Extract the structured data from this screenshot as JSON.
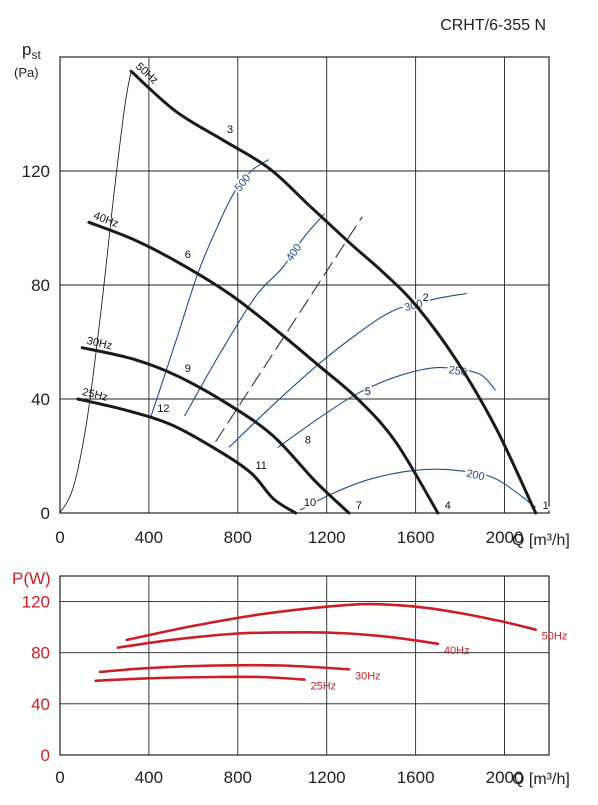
{
  "chart_data": [
    {
      "type": "line",
      "title": "CRHT/6-355 N",
      "ylabel_main": "p",
      "ylabel_sub": "st",
      "ylabel_unit": "(Pa)",
      "xlabel": "Q [m³/h]",
      "xlim": [
        0,
        2200
      ],
      "ylim": [
        0,
        160
      ],
      "xticks": [
        "0",
        "400",
        "800",
        "1200",
        "1600",
        "2000"
      ],
      "xtick_values": [
        0,
        400,
        800,
        1200,
        1600,
        2000
      ],
      "yticks": [
        "0",
        "40",
        "80",
        "120"
      ],
      "ytick_values": [
        0,
        40,
        80,
        120
      ],
      "grid": true,
      "series": [
        {
          "name": "50Hz",
          "x": [
            320,
            520,
            730,
            940,
            1120,
            1300,
            1460,
            1600,
            1780,
            1960,
            2140
          ],
          "y": [
            155,
            141,
            131,
            121,
            108,
            95,
            84,
            73,
            54,
            30,
            0
          ]
        },
        {
          "name": "40Hz",
          "x": [
            130,
            330,
            530,
            760,
            960,
            1160,
            1340,
            1510,
            1700
          ],
          "y": [
            102,
            96,
            88,
            77,
            65,
            52,
            40,
            25,
            0
          ]
        },
        {
          "name": "30Hz",
          "x": [
            100,
            330,
            530,
            760,
            960,
            1150,
            1300
          ],
          "y": [
            58,
            54,
            48,
            38,
            27,
            11,
            0
          ]
        },
        {
          "name": "25Hz",
          "x": [
            80,
            300,
            500,
            710,
            860,
            960,
            1060
          ],
          "y": [
            40,
            36,
            31,
            22,
            14,
            5,
            0
          ]
        }
      ],
      "operating_points": [
        {
          "label": "1",
          "x": 2140,
          "y": 0
        },
        {
          "label": "2",
          "x": 1600,
          "y": 73
        },
        {
          "label": "3",
          "x": 720,
          "y": 132
        },
        {
          "label": "4",
          "x": 1700,
          "y": 0
        },
        {
          "label": "5",
          "x": 1340,
          "y": 40
        },
        {
          "label": "6",
          "x": 530,
          "y": 88
        },
        {
          "label": "7",
          "x": 1300,
          "y": 0
        },
        {
          "label": "8",
          "x": 1070,
          "y": 23
        },
        {
          "label": "9",
          "x": 530,
          "y": 48
        },
        {
          "label": "10",
          "x": 1080,
          "y": 1
        },
        {
          "label": "11",
          "x": 860,
          "y": 14
        },
        {
          "label": "12",
          "x": 420,
          "y": 34
        }
      ],
      "efficiency_curves": [
        {
          "name": "500",
          "x": [
            410,
            520,
            620,
            700,
            780,
            860,
            940
          ],
          "y": [
            34,
            60,
            84,
            99,
            112,
            120,
            124
          ]
        },
        {
          "name": "400",
          "x": [
            560,
            720,
            880,
            1000,
            1100,
            1190
          ],
          "y": [
            34,
            56,
            76,
            86,
            97,
            105
          ]
        },
        {
          "name": "300",
          "x": [
            760,
            960,
            1160,
            1340,
            1500,
            1680,
            1830
          ],
          "y": [
            23,
            38,
            52,
            63,
            71,
            75,
            77
          ]
        },
        {
          "name": "250",
          "x": [
            980,
            1160,
            1340,
            1520,
            1700,
            1880,
            1960
          ],
          "y": [
            23,
            33,
            42,
            48,
            51,
            49,
            43
          ]
        },
        {
          "name": "200",
          "x": [
            1080,
            1230,
            1400,
            1600,
            1780,
            1960,
            2140
          ],
          "y": [
            1,
            7,
            12,
            15,
            15,
            12,
            2
          ]
        }
      ],
      "system_curve": {
        "x": [
          0,
          60,
          120,
          180,
          240,
          290,
          320
        ],
        "y": [
          0,
          9,
          32,
          68,
          110,
          142,
          155
        ]
      },
      "dashed_line": {
        "x": [
          700,
          1360
        ],
        "y": [
          25,
          104
        ]
      }
    },
    {
      "type": "line",
      "ylabel": "P(W)",
      "xlabel": "Q [m³/h]",
      "xlim": [
        0,
        2200
      ],
      "ylim": [
        0,
        140
      ],
      "xticks": [
        "0",
        "400",
        "800",
        "1200",
        "1600",
        "2000"
      ],
      "xtick_values": [
        0,
        400,
        800,
        1200,
        1600,
        2000
      ],
      "yticks": [
        "0",
        "40",
        "80",
        "120"
      ],
      "ytick_values": [
        0,
        40,
        80,
        120
      ],
      "grid": true,
      "series": [
        {
          "name": "50Hz",
          "x": [
            300,
            600,
            900,
            1200,
            1400,
            1600,
            1800,
            2000,
            2140
          ],
          "y": [
            90,
            101,
            110,
            116,
            118,
            116,
            111,
            104,
            98
          ]
        },
        {
          "name": "40Hz",
          "x": [
            260,
            500,
            800,
            1100,
            1300,
            1500,
            1700
          ],
          "y": [
            84,
            90,
            95,
            96,
            95,
            92,
            87
          ]
        },
        {
          "name": "30Hz",
          "x": [
            180,
            400,
            700,
            1000,
            1300
          ],
          "y": [
            65,
            68,
            70,
            70,
            67
          ]
        },
        {
          "name": "25Hz",
          "x": [
            160,
            400,
            700,
            900,
            1100
          ],
          "y": [
            58,
            60,
            61,
            61,
            59
          ]
        }
      ]
    }
  ]
}
